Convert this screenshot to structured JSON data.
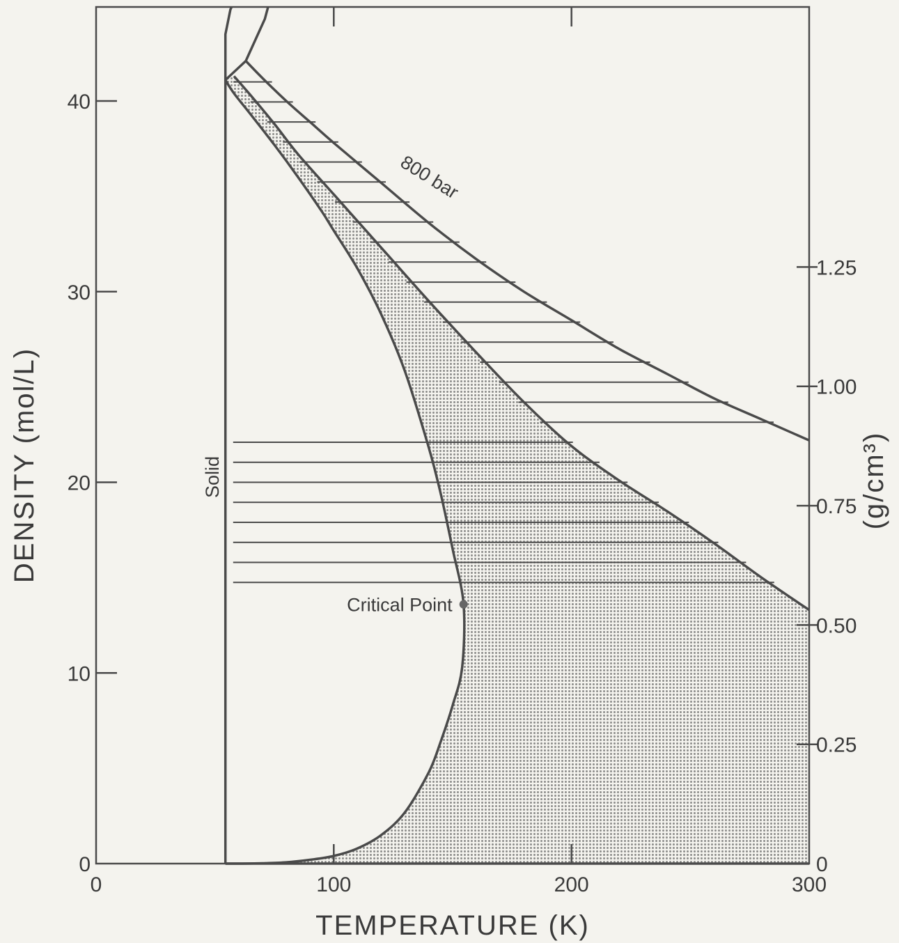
{
  "chart_data": {
    "type": "line",
    "xlabel": "TEMPERATURE (K)",
    "ylabel": "DENSITY (mol/L)",
    "y2label": "(g/cm³)",
    "xlim": [
      0,
      300
    ],
    "ylim": [
      0,
      40
    ],
    "x_ticks": [
      "0",
      "100",
      "200",
      "300"
    ],
    "x_tick_values": [
      0,
      100,
      200,
      300
    ],
    "y_ticks": [
      "0",
      "10",
      "20",
      "30",
      "40"
    ],
    "y_tick_values": [
      0,
      10,
      20,
      30,
      40
    ],
    "y2_ticks": [
      "0",
      "0.25",
      "0.50",
      "0.75",
      "1.00",
      "1.25"
    ],
    "y2_tick_values": [
      0,
      0.25,
      0.5,
      0.75,
      1.0,
      1.25
    ],
    "grid": false,
    "shading": {
      "dotted_region": "between saturation boundary and lower isobar",
      "hatched_region": "between lower isobar and 800 bar isobar"
    },
    "series": [
      {
        "name": "Solid",
        "x": [
          54.4,
          54.4,
          56.5,
          68.5
        ],
        "y": [
          0,
          43.5,
          44.8,
          48.0
        ]
      },
      {
        "name": "",
        "x": [
          54.4,
          63.0,
          71.0,
          79.0
        ],
        "y": [
          41.1,
          42.1,
          44.3,
          48.0
        ]
      },
      {
        "name": "",
        "x": [
          54.4,
          58,
          65,
          75,
          85,
          95,
          100,
          110,
          120,
          130,
          140,
          145,
          150,
          154.6,
          154,
          150,
          145,
          140,
          130,
          120,
          110,
          100,
          90,
          80,
          70,
          60,
          54.4
        ],
        "y": [
          41.1,
          40.4,
          39.3,
          37.7,
          36.0,
          34.2,
          33.2,
          31.2,
          28.8,
          25.8,
          21.8,
          19.4,
          16.5,
          13.6,
          10.3,
          8.3,
          6.4,
          4.8,
          2.7,
          1.5,
          0.8,
          0.4,
          0.2,
          0.07,
          0.02,
          0.0,
          0.0
        ]
      },
      {
        "name": "",
        "x": [
          58,
          65,
          75,
          85,
          100,
          120,
          140,
          160,
          180,
          200,
          220,
          240,
          260,
          280,
          300
        ],
        "y": [
          41.3,
          40.3,
          38.8,
          37.2,
          35.1,
          32.3,
          29.5,
          26.8,
          24.2,
          21.9,
          20.1,
          18.5,
          16.8,
          15.0,
          13.3
        ]
      },
      {
        "name": "800 bar",
        "x": [
          63,
          70,
          80,
          90,
          100,
          120,
          140,
          160,
          180,
          200,
          220,
          240,
          260,
          280,
          300
        ],
        "y": [
          42.1,
          41.2,
          40.0,
          38.9,
          37.8,
          35.7,
          33.6,
          31.7,
          30.0,
          28.5,
          27.0,
          25.7,
          24.4,
          23.3,
          22.2
        ]
      }
    ],
    "annotations": {
      "solid_label": "Solid",
      "critical_label": "Critical Point",
      "isobar_label": "800 bar"
    },
    "critical_point": {
      "x": 154.6,
      "y": 13.6
    }
  },
  "colors": {
    "background": "#f4f3ee",
    "ink": "#4a4a4a",
    "dot_fill": "#8a8a88"
  }
}
